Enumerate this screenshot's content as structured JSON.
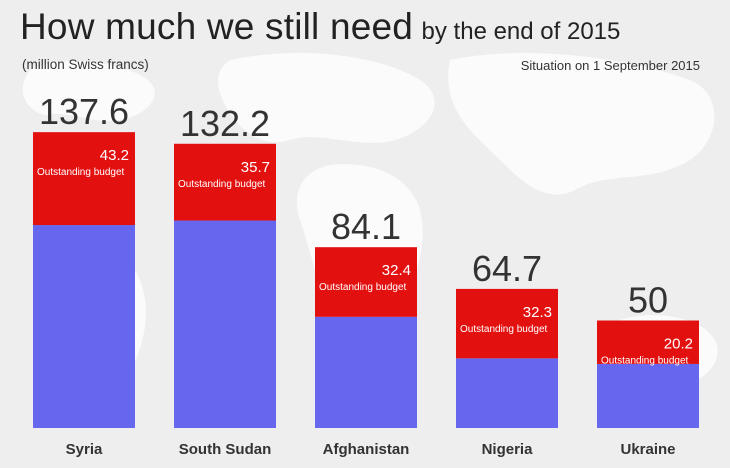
{
  "title": {
    "main": "How much we still need",
    "sub": "by the end of 2015"
  },
  "units_note": "(million Swiss francs)",
  "situation_note": "Situation on 1 September 2015",
  "colors": {
    "funded": "#6666ee",
    "outstanding": "#e31010",
    "background": "#eeeeee",
    "map": "#ffffff"
  },
  "chart_data": {
    "type": "bar",
    "stacked": true,
    "categories": [
      "Syria",
      "South Sudan",
      "Afghanistan",
      "Nigeria",
      "Ukraine"
    ],
    "totals": [
      "137.6",
      "132.2",
      "84.1",
      "64.7",
      "50"
    ],
    "series": [
      {
        "values": [
          94.4,
          96.5,
          51.7,
          32.4,
          29.8
        ]
      },
      {
        "name": "Outstanding budget",
        "values": [
          43.2,
          35.7,
          32.4,
          32.3,
          20.2
        ]
      }
    ],
    "outstanding_labels": [
      "43.2",
      "35.7",
      "32.4",
      "32.3",
      "20.2"
    ],
    "segment_label": "Outstanding budget",
    "ylim": [
      0,
      150
    ],
    "grid": false
  }
}
